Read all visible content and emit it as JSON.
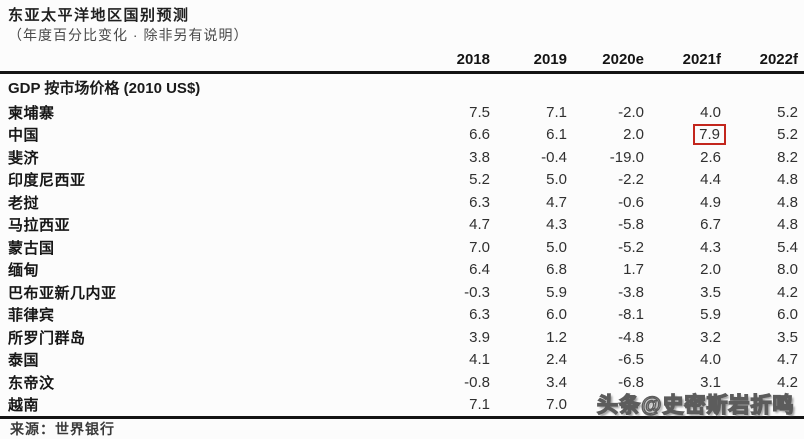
{
  "page": {
    "title": "东亚太平洋地区国别预测",
    "subtitle": "（年度百分比变化 · 除非另有说明）"
  },
  "table": {
    "columns": [
      "2018",
      "2019",
      "2020e",
      "2021f",
      "2022f"
    ],
    "section_label": "GDP 按市场价格 (2010 US$)",
    "rows": [
      {
        "name": "柬埔寨",
        "values": [
          "7.5",
          "7.1",
          "-2.0",
          "4.0",
          "5.2"
        ]
      },
      {
        "name": "中国",
        "values": [
          "6.6",
          "6.1",
          "2.0",
          "7.9",
          "5.2"
        ],
        "highlight_col": 3
      },
      {
        "name": "斐济",
        "values": [
          "3.8",
          "-0.4",
          "-19.0",
          "2.6",
          "8.2"
        ]
      },
      {
        "name": "印度尼西亚",
        "values": [
          "5.2",
          "5.0",
          "-2.2",
          "4.4",
          "4.8"
        ]
      },
      {
        "name": "老挝",
        "values": [
          "6.3",
          "4.7",
          "-0.6",
          "4.9",
          "4.8"
        ]
      },
      {
        "name": "马拉西亚",
        "values": [
          "4.7",
          "4.3",
          "-5.8",
          "6.7",
          "4.8"
        ]
      },
      {
        "name": "蒙古国",
        "values": [
          "7.0",
          "5.0",
          "-5.2",
          "4.3",
          "5.4"
        ]
      },
      {
        "name": "缅甸",
        "values": [
          "6.4",
          "6.8",
          "1.7",
          "2.0",
          "8.0"
        ]
      },
      {
        "name": "巴布亚新几内亚",
        "values": [
          "-0.3",
          "5.9",
          "-3.8",
          "3.5",
          "4.2"
        ]
      },
      {
        "name": "菲律宾",
        "values": [
          "6.3",
          "6.0",
          "-8.1",
          "5.9",
          "6.0"
        ]
      },
      {
        "name": "所罗门群岛",
        "values": [
          "3.9",
          "1.2",
          "-4.8",
          "3.2",
          "3.5"
        ]
      },
      {
        "name": "泰国",
        "values": [
          "4.1",
          "2.4",
          "-6.5",
          "4.0",
          "4.7"
        ]
      },
      {
        "name": "东帝汶",
        "values": [
          "-0.8",
          "3.4",
          "-6.8",
          "3.1",
          "4.2"
        ]
      },
      {
        "name": "越南",
        "values": [
          "7.1",
          "7.0",
          "",
          "",
          ""
        ]
      }
    ]
  },
  "colors": {
    "highlight_box": "#c3261d"
  },
  "watermark": {
    "text": "头条@史密斯岩折鸣"
  },
  "footer": {
    "text": "来源：世界银行"
  }
}
